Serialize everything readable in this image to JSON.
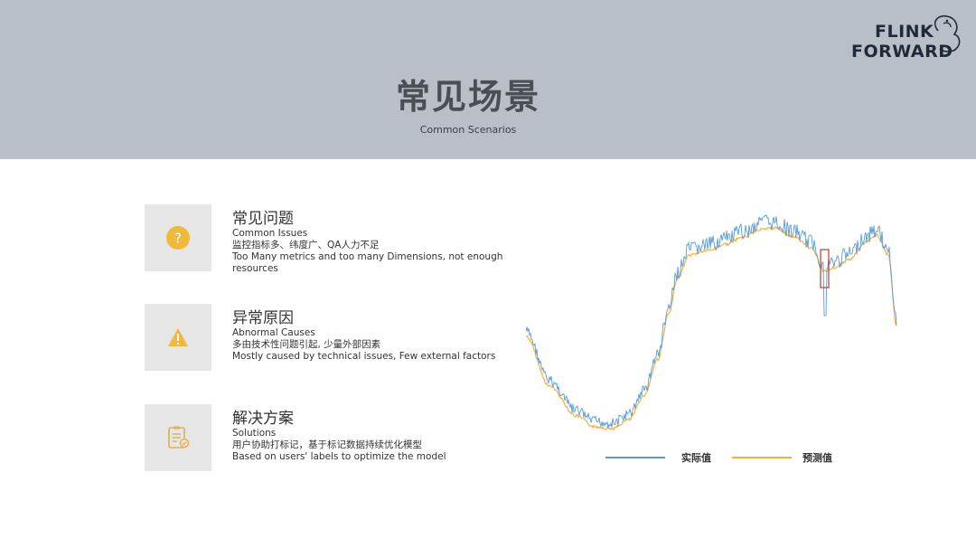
{
  "header": {
    "title": "常见场景",
    "subtitle": "Common Scenarios",
    "logo_line1": "FLINK",
    "logo_line2": "FORWARD"
  },
  "items": [
    {
      "icon": "question-circle-icon",
      "title_cn": "常见问题",
      "title_en": "Common Issues",
      "desc_cn": "监控指标多、纬度广、QA人力不足",
      "desc_en": "Too Many metrics and too many Dimensions, not enough resources"
    },
    {
      "icon": "warning-triangle-icon",
      "title_cn": "异常原因",
      "title_en": "Abnormal Causes",
      "desc_cn": "多由技术性问题引起, 少量外部因素",
      "desc_en": "Mostly caused by technical issues, Few external factors"
    },
    {
      "icon": "clipboard-check-icon",
      "title_cn": "解决方案",
      "title_en": "Solutions",
      "desc_cn": "用户协助打标记，基于标记数据持续优化模型",
      "desc_en": "Based on users' labels to optimize the model"
    }
  ],
  "chart_data": {
    "type": "line",
    "series": [
      {
        "name": "实际值",
        "color": "#5b9bd5"
      },
      {
        "name": "预测值",
        "color": "#f4b13b"
      }
    ],
    "legend_position": "bottom",
    "grid": false,
    "highlight_box": true
  },
  "colors": {
    "header_bg": "#b8bfc7",
    "icon_yellow": "#f0b93a",
    "tile_bg": "#e6e6e6",
    "actual": "#5b9bd5",
    "predicted": "#f4b13b",
    "highlight": "#c0392b"
  }
}
